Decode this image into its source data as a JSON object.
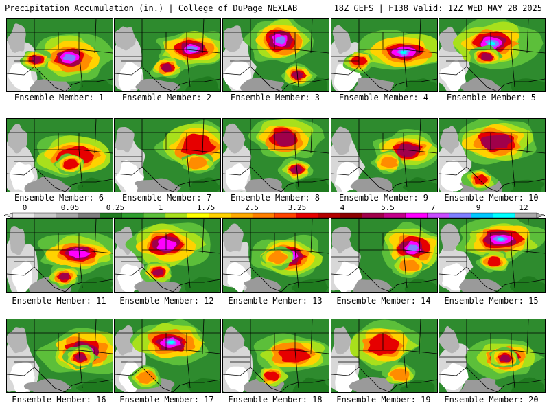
{
  "header": {
    "left": "Precipitation Accumulation (in.) | College of DuPage NEXLAB",
    "right": "18Z GEFS | F138 Valid: 12Z WED MAY 28 2025"
  },
  "legend": {
    "ticks": [
      "0",
      "0.05",
      "0.25",
      "1",
      "1.75",
      "2.5",
      "3.25",
      "4",
      "5.5",
      "7",
      "9",
      "12"
    ],
    "colors": [
      "#e6e6e6",
      "#c8c8c8",
      "#a8a8a8",
      "#7d7d7d",
      "#1f7a1f",
      "#2e9e2e",
      "#5cbf3a",
      "#a8e01c",
      "#ffff00",
      "#ffd200",
      "#ffaa00",
      "#ff7f00",
      "#ff4400",
      "#e60000",
      "#b30000",
      "#8b0000",
      "#a0004a",
      "#c2008a",
      "#ff00ff",
      "#c94dff",
      "#7f7fff",
      "#00c8ff",
      "#00ffff",
      "#aaaaaa"
    ]
  },
  "members": [
    {
      "label": "Ensemble Member: 1"
    },
    {
      "label": "Ensemble Member: 2"
    },
    {
      "label": "Ensemble Member: 3"
    },
    {
      "label": "Ensemble Member: 4"
    },
    {
      "label": "Ensemble Member: 5"
    },
    {
      "label": "Ensemble Member: 6"
    },
    {
      "label": "Ensemble Member: 7"
    },
    {
      "label": "Ensemble Member: 8"
    },
    {
      "label": "Ensemble Member: 9"
    },
    {
      "label": "Ensemble Member: 10"
    },
    {
      "label": "Ensemble Member: 11"
    },
    {
      "label": "Ensemble Member: 12"
    },
    {
      "label": "Ensemble Member: 13"
    },
    {
      "label": "Ensemble Member: 14"
    },
    {
      "label": "Ensemble Member: 15"
    },
    {
      "label": "Ensemble Member: 16"
    },
    {
      "label": "Ensemble Member: 17"
    },
    {
      "label": "Ensemble Member: 18"
    },
    {
      "label": "Ensemble Member: 19"
    },
    {
      "label": "Ensemble Member: 20"
    }
  ]
}
